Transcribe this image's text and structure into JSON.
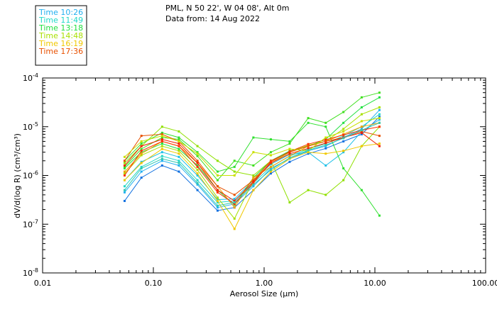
{
  "chart_data": {
    "type": "line",
    "title_line1": "PML, N 50 22', W 04 08', Alt 0m",
    "title_line2": "Data from: 14 Aug 2022",
    "xlabel": "Aerosol Size (µm)",
    "ylabel": "dV/d(log R) (cm³/cm³)",
    "x_scale": "log",
    "y_scale": "log",
    "xlim": [
      0.01,
      100
    ],
    "ylim": [
      1e-08,
      0.0001
    ],
    "x_ticks": [
      {
        "value": 0.01,
        "label": "0.01"
      },
      {
        "value": 0.1,
        "label": "0.10"
      },
      {
        "value": 1,
        "label": "1.00"
      },
      {
        "value": 10,
        "label": "10.00"
      },
      {
        "value": 100,
        "label": "100.00"
      }
    ],
    "y_ticks": [
      {
        "value": 0.0001,
        "label_base": "10",
        "label_exp": "-4"
      },
      {
        "value": 1e-05,
        "label_base": "10",
        "label_exp": "-5"
      },
      {
        "value": 1e-06,
        "label_base": "10",
        "label_exp": "-6"
      },
      {
        "value": 1e-07,
        "label_base": "10",
        "label_exp": "-7"
      },
      {
        "value": 1e-08,
        "label_base": "10",
        "label_exp": "-8"
      }
    ],
    "sizes_um": [
      0.055,
      0.078,
      0.12,
      0.17,
      0.25,
      0.38,
      0.54,
      0.8,
      1.15,
      1.7,
      2.5,
      3.6,
      5.2,
      7.6,
      11.0
    ],
    "legend": [
      {
        "label": "Time 10:26",
        "color": "#22b0f0"
      },
      {
        "label": "Time 11:49",
        "color": "#22d8c8"
      },
      {
        "label": "Time 13:18",
        "color": "#22e040"
      },
      {
        "label": "Time 14:48",
        "color": "#a8e000"
      },
      {
        "label": "Time 16:19",
        "color": "#f0c800"
      },
      {
        "label": "Time 17:36",
        "color": "#e85000"
      }
    ],
    "series": [
      {
        "name": "Time 10:26",
        "color": "#1070e0",
        "values": [
          3e-07,
          9e-07,
          1.6e-06,
          1.2e-06,
          5e-07,
          1.9e-07,
          2.2e-07,
          5e-07,
          1.1e-06,
          1.9e-06,
          2.8e-06,
          3.6e-06,
          5e-06,
          7e-06,
          1.6e-05
        ]
      },
      {
        "name": "Time 10:26",
        "color": "#22b0f0",
        "values": [
          4.5e-07,
          1.2e-06,
          2e-06,
          1.6e-06,
          6.5e-07,
          2.2e-07,
          2.6e-07,
          6e-07,
          1.4e-06,
          2.2e-06,
          3.2e-06,
          4e-06,
          6e-06,
          9e-06,
          2.2e-05
        ]
      },
      {
        "name": "Time 11:49",
        "color": "#22d8c8",
        "values": [
          6e-07,
          1.5e-06,
          2.5e-06,
          2e-06,
          8e-07,
          2.8e-07,
          3e-07,
          7e-07,
          1.5e-06,
          2.5e-06,
          3.5e-06,
          4.5e-06,
          6.5e-06,
          1e-05,
          1.8e-05
        ]
      },
      {
        "name": "Time 11:49",
        "color": "#20c0e8",
        "values": [
          8e-07,
          1.9e-06,
          3e-06,
          2.4e-06,
          1e-06,
          3.2e-07,
          3.3e-07,
          8e-07,
          1.7e-06,
          2.7e-06,
          3e-06,
          1.6e-06,
          3e-06,
          8e-06,
          1.4e-05
        ]
      },
      {
        "name": "Time 13:18",
        "color": "#22e040",
        "values": [
          1.4e-06,
          3e-06,
          4.5e-06,
          3.5e-06,
          1.6e-06,
          5e-07,
          2.5e-07,
          9e-07,
          2e-06,
          3.2e-06,
          4e-06,
          5.5e-06,
          1.2e-05,
          2.5e-05,
          4e-05
        ]
      },
      {
        "name": "Time 13:18",
        "color": "#30e030",
        "values": [
          2e-06,
          4.5e-06,
          7.5e-06,
          6e-06,
          3e-06,
          1.2e-06,
          1.5e-06,
          6e-06,
          5.5e-06,
          5e-06,
          1.2e-05,
          1e-05,
          1.4e-06,
          5e-07,
          1.5e-07
        ]
      },
      {
        "name": "Time 13:18",
        "color": "#40e020",
        "values": [
          1.5e-06,
          3.5e-06,
          6e-06,
          5.5e-06,
          2.5e-06,
          8e-07,
          2e-06,
          1.6e-06,
          3e-06,
          4.5e-06,
          1.5e-05,
          1.2e-05,
          2e-05,
          4e-05,
          5e-05
        ]
      },
      {
        "name": "Time 14:48",
        "color": "#a8e000",
        "values": [
          1.1e-06,
          2.6e-06,
          4e-06,
          3.2e-06,
          1.3e-06,
          3.5e-07,
          1.3e-07,
          8e-07,
          1.8e-06,
          3e-06,
          4.2e-06,
          5e-06,
          9e-06,
          1.8e-05,
          2.5e-05
        ]
      },
      {
        "name": "Time 14:48",
        "color": "#90e000",
        "values": [
          1.8e-06,
          4e-06,
          1e-05,
          8e-06,
          4e-06,
          2e-06,
          1.2e-06,
          1e-06,
          2e-06,
          2.8e-07,
          5e-07,
          4e-07,
          8e-07,
          4e-06,
          1e-05
        ]
      },
      {
        "name": "Time 16:19",
        "color": "#f0c800",
        "values": [
          8e-07,
          1.8e-06,
          3.5e-06,
          2.8e-06,
          1.1e-06,
          3e-07,
          8e-08,
          5e-07,
          1.2e-06,
          2.2e-06,
          3e-06,
          2.8e-06,
          3.2e-06,
          4e-06,
          4.5e-06
        ]
      },
      {
        "name": "Time 16:19",
        "color": "#f0a000",
        "values": [
          1.2e-06,
          2.8e-06,
          5e-06,
          4e-06,
          1.8e-06,
          6e-07,
          2.2e-07,
          9e-07,
          1.5e-06,
          2.5e-06,
          4e-06,
          5e-06,
          7e-06,
          1e-05,
          1.2e-05
        ]
      },
      {
        "name": "Time 17:36",
        "color": "#e85000",
        "values": [
          2e-06,
          6.5e-06,
          7e-06,
          5e-06,
          2e-06,
          6e-07,
          4e-07,
          8e-07,
          2e-06,
          3e-06,
          4e-06,
          5e-06,
          6e-06,
          8e-06,
          6.5e-06
        ]
      },
      {
        "name": "Time 17:36",
        "color": "#f02000",
        "values": [
          1.6e-06,
          4e-06,
          5.5e-06,
          4.5e-06,
          1.8e-06,
          5e-07,
          3e-07,
          7.5e-07,
          1.8e-06,
          2.8e-06,
          3.6e-06,
          4.6e-06,
          6e-06,
          7.5e-06,
          4e-06
        ]
      },
      {
        "name": "Time 17:36",
        "color": "#ff3000",
        "values": [
          1e-06,
          3.2e-06,
          5e-06,
          4e-06,
          1.5e-06,
          4.5e-07,
          2.6e-07,
          7e-07,
          1.9e-06,
          3.1e-06,
          4.4e-06,
          5.4e-06,
          6.8e-06,
          8.5e-06,
          1e-05
        ]
      },
      {
        "name": "Time 14:48",
        "color": "#c8e000",
        "values": [
          2.4e-06,
          5e-06,
          6.5e-06,
          5e-06,
          2.8e-06,
          1e-06,
          1e-06,
          3e-06,
          2.6e-06,
          3.5e-06,
          3.2e-06,
          6e-06,
          8e-06,
          1.3e-05,
          1.5e-05
        ]
      },
      {
        "name": "Time 11:49",
        "color": "#30c8b0",
        "values": [
          5e-07,
          1.4e-06,
          2.2e-06,
          1.8e-06,
          7e-07,
          2.4e-07,
          2.8e-07,
          6.5e-07,
          1.3e-06,
          2.3e-06,
          3.3e-06,
          4.2e-06,
          5.8e-06,
          8.5e-06,
          1.2e-05
        ]
      }
    ]
  }
}
